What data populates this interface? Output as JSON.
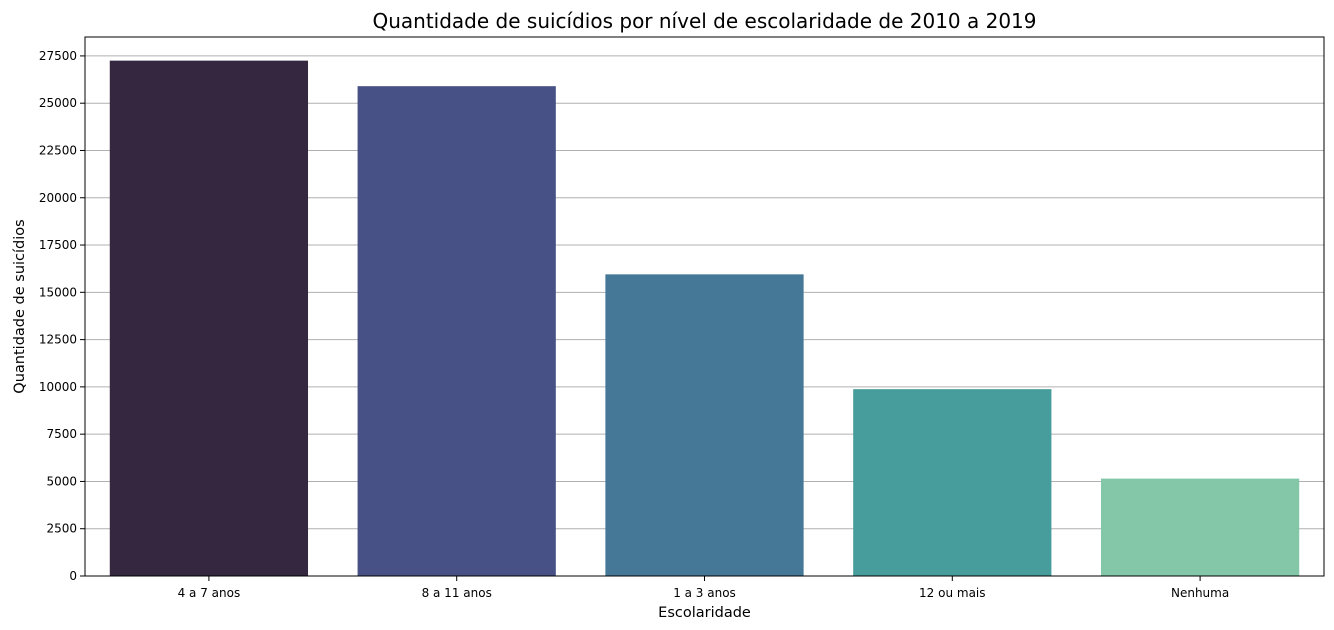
{
  "chart_data": {
    "type": "bar",
    "title": "Quantidade de suicídios por nível de escolaridade de 2010 a 2019",
    "xlabel": "Escolaridade",
    "ylabel": "Quantidade de suicídios",
    "categories": [
      "4 a 7 anos",
      "8 a 11 anos",
      "1 a 3 anos",
      "12 ou mais",
      "Nenhuma"
    ],
    "values": [
      27250,
      25900,
      15950,
      9880,
      5150
    ],
    "colors": [
      "#35273f",
      "#475186",
      "#447896",
      "#479d9c",
      "#83c7a8"
    ],
    "ylim": [
      0,
      28500
    ],
    "yticks": [
      0,
      2500,
      5000,
      7500,
      10000,
      12500,
      15000,
      17500,
      20000,
      22500,
      25000,
      27500
    ],
    "grid": "y",
    "legend": "none"
  }
}
